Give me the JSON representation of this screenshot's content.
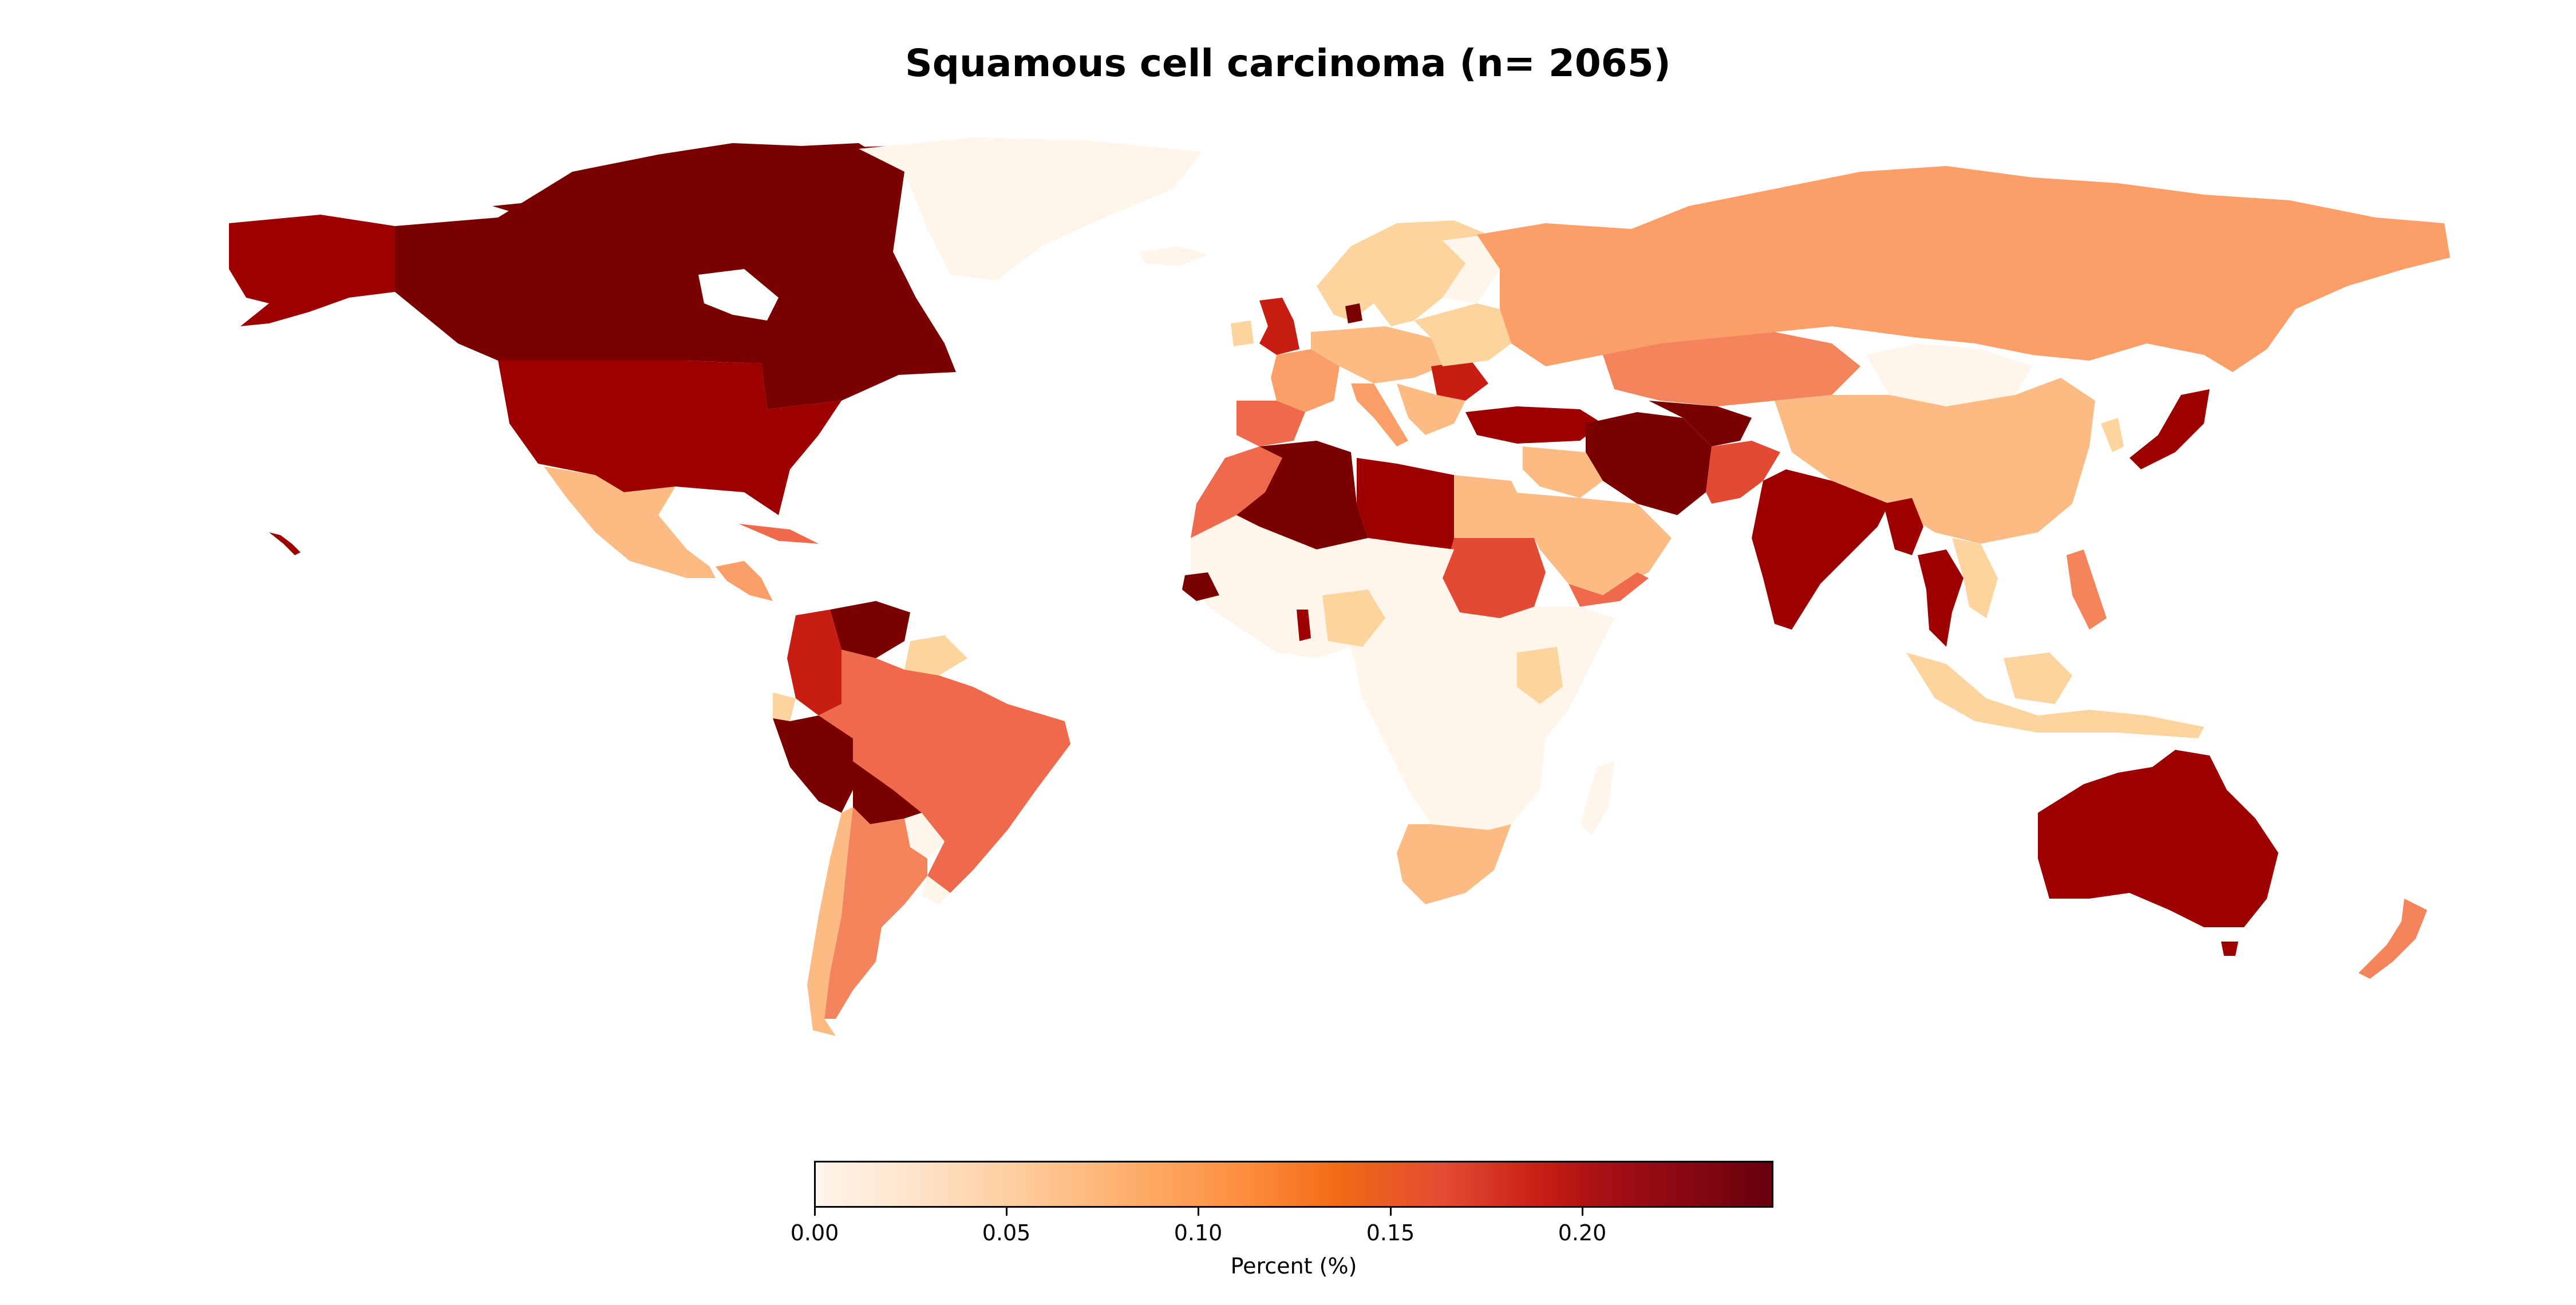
{
  "title": "Squamous cell carcinoma (n= 2065)",
  "colorbar": {
    "label": "Percent (%)",
    "ticks": [
      "0.00",
      "0.05",
      "0.10",
      "0.15",
      "0.20"
    ],
    "tick_values": [
      0.0,
      0.05,
      0.1,
      0.15,
      0.2
    ],
    "min": 0.0,
    "max": 0.25,
    "colormap": "OrRd"
  },
  "colors": {
    "c0": "#fff5eb",
    "c1": "#fdd49e",
    "c2": "#fdbb84",
    "c3": "#fc9e68",
    "c4": "#f4845b",
    "c5": "#ef6a4c",
    "c6": "#e34a33",
    "c7": "#c81d13",
    "c8": "#9e0000",
    "c9": "#7a0000"
  }
}
